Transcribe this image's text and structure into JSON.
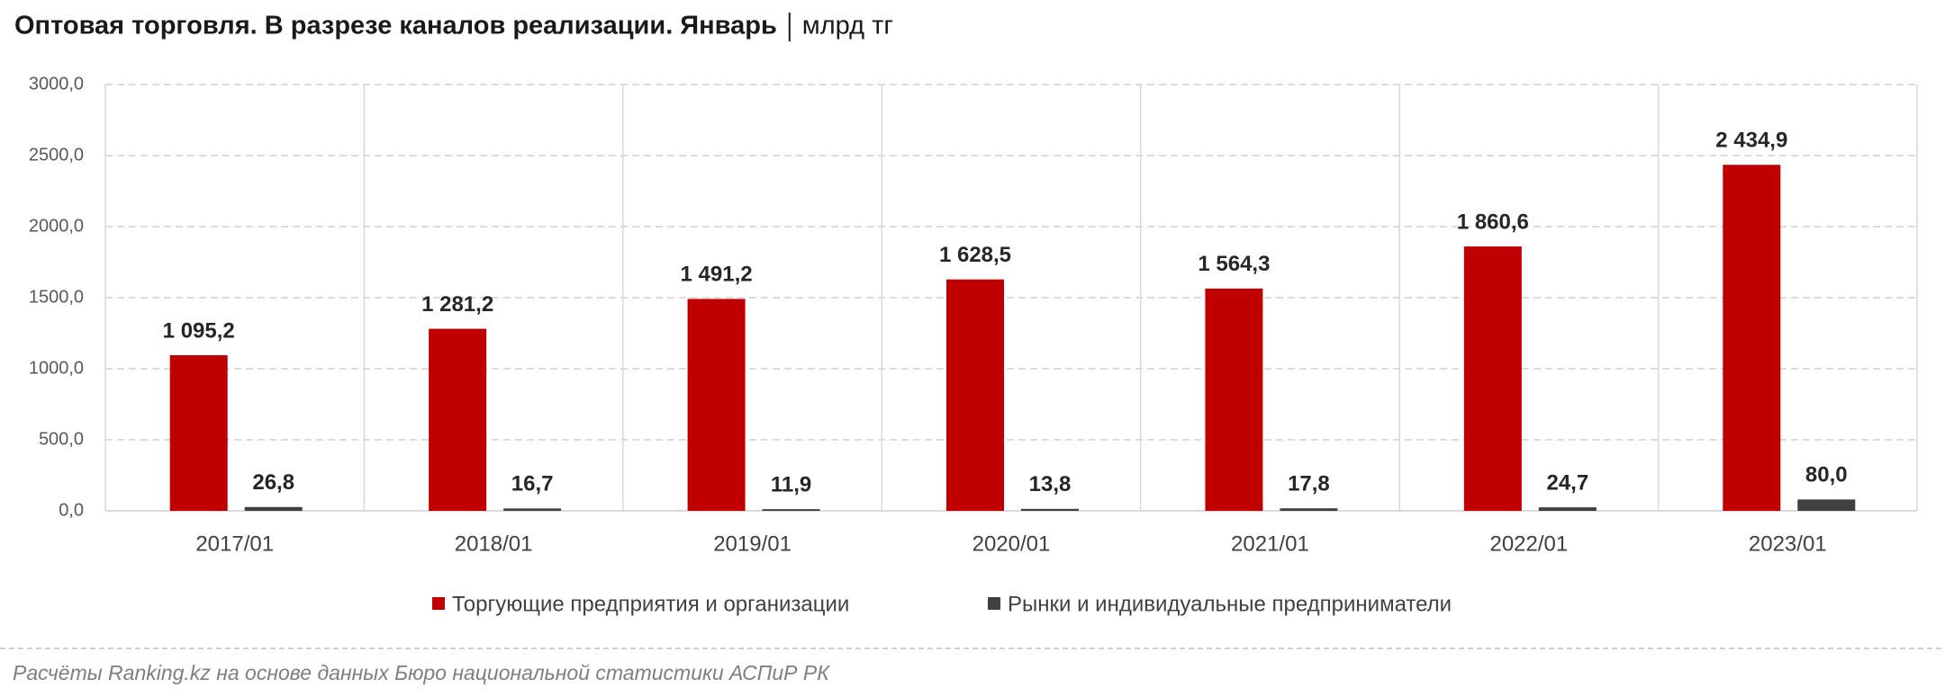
{
  "chart_data": {
    "type": "bar",
    "title": "Оптовая торговля. В разрезе каналов реализации. Январь",
    "units": "млрд тг",
    "source": "Расчёты Ranking.kz на основе данных Бюро национальной статистики АСПиР РК",
    "categories": [
      "2017/01",
      "2018/01",
      "2019/01",
      "2020/01",
      "2021/01",
      "2022/01",
      "2023/01"
    ],
    "series": [
      {
        "name": "Торгующие предприятия и организации",
        "color": "#c00000",
        "values": [
          1095.2,
          1281.2,
          1491.2,
          1628.5,
          1564.3,
          1860.6,
          2434.9
        ],
        "value_labels": [
          "1 095,2",
          "1 281,2",
          "1 491,2",
          "1 628,5",
          "1 564,3",
          "1 860,6",
          "2 434,9"
        ]
      },
      {
        "name": "Рынки и индивидуальные предприниматели",
        "color": "#404040",
        "values": [
          26.8,
          16.7,
          11.9,
          13.8,
          17.8,
          24.7,
          80.0
        ],
        "value_labels": [
          "26,8",
          "16,7",
          "11,9",
          "13,8",
          "17,8",
          "24,7",
          "80,0"
        ]
      }
    ],
    "ylim": [
      0,
      3000
    ],
    "yticks": [
      {
        "value": 0,
        "label": "0,0"
      },
      {
        "value": 500,
        "label": "500,0"
      },
      {
        "value": 1000,
        "label": "1000,0"
      },
      {
        "value": 1500,
        "label": "1500,0"
      },
      {
        "value": 2000,
        "label": "2000,0"
      },
      {
        "value": 2500,
        "label": "2500,0"
      },
      {
        "value": 3000,
        "label": "3000,0"
      }
    ],
    "grid": true
  }
}
